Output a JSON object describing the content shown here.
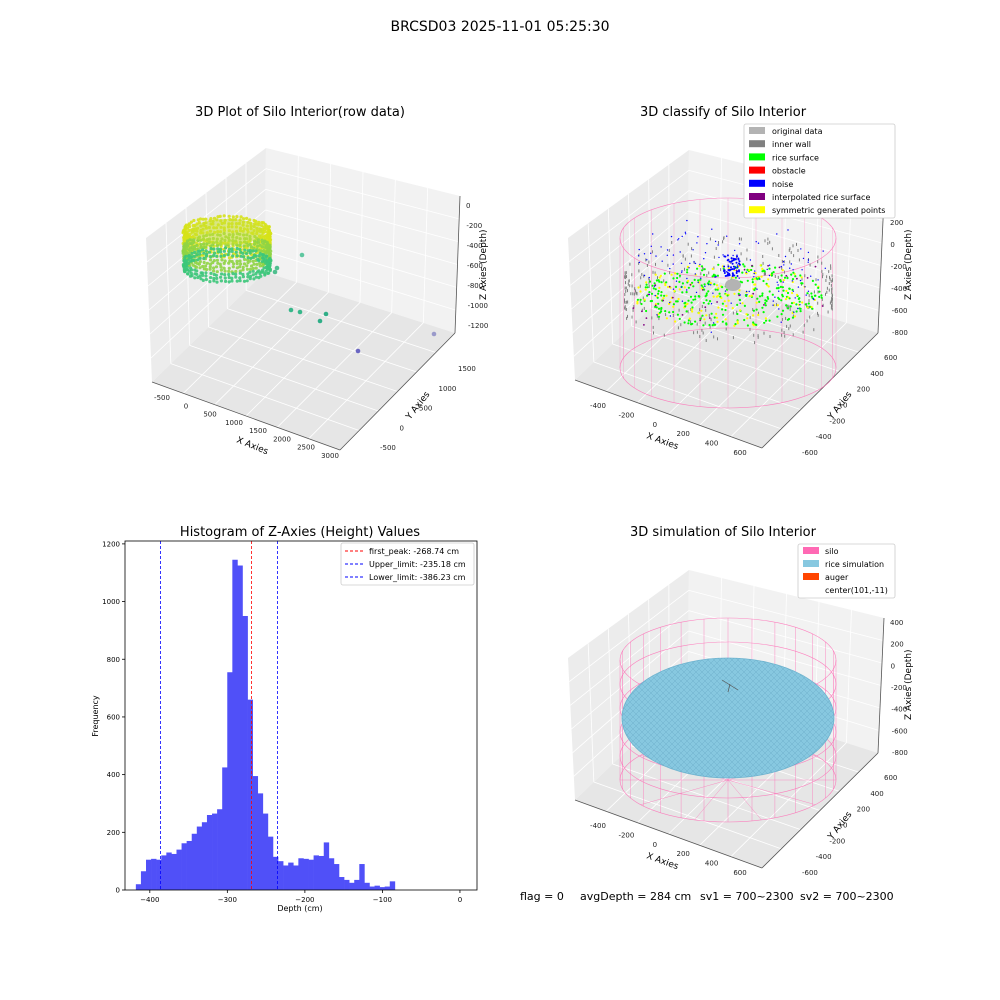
{
  "figure": {
    "title": "BRCSD03 2025-11-01 05:25:30",
    "footer": {
      "flag": "flag = 0",
      "avg_depth": "avgDepth = 284 cm",
      "sv1": "sv1 = 700~2300",
      "sv2": "sv2 = 700~2300"
    }
  },
  "colors": {
    "hist_bar": "#5050f8",
    "peak_line": "#ff0000",
    "limit_line": "#0000ff",
    "silo": "#ff69b4",
    "rice_sim": "#87c8e0",
    "auger": "#ff4500",
    "original": "#b3b3b3",
    "inner_wall": "#808080",
    "rice_surface": "#00ff00",
    "obstacle": "#ff0000",
    "noise": "#0000ff",
    "interpolated": "#800080",
    "symmetric": "#ffff00"
  },
  "chart_data": [
    {
      "type": "scatter",
      "title": "3D Plot of Silo Interior(row data)",
      "xlabel": "X Axies",
      "ylabel": "Y Axies",
      "zlabel": "Z Axies (Depth)",
      "x_ticks": [
        "-500",
        "0",
        "500",
        "1000",
        "1500",
        "2000",
        "2500",
        "3000"
      ],
      "y_ticks": [
        "-500",
        "0",
        "500",
        "1000",
        "1500"
      ],
      "z_ticks": [
        "0",
        "-200",
        "-400",
        "-600",
        "-800",
        "-1000",
        "-1200"
      ],
      "outlier_points": [
        {
          "x": 1150,
          "y": 1350,
          "z": -530
        },
        {
          "x": 1400,
          "y": 700,
          "z": -620
        },
        {
          "x": 1550,
          "y": 650,
          "z": -640
        },
        {
          "x": 1700,
          "y": 450,
          "z": -1040
        },
        {
          "x": 1900,
          "y": 400,
          "z": -1070
        },
        {
          "x": 2300,
          "y": 500,
          "z": -1000
        },
        {
          "x": 2550,
          "y": 150,
          "z": -1150
        },
        {
          "x": 3000,
          "y": 600,
          "z": -1250
        }
      ]
    },
    {
      "type": "scatter",
      "title": "3D classify of Silo Interior",
      "xlabel": "X Axies",
      "ylabel": "Y Axies",
      "zlabel": "Z Axies (Depth)",
      "x_ticks": [
        "-400",
        "-200",
        "0",
        "200",
        "400",
        "600"
      ],
      "y_ticks": [
        "-600",
        "-400",
        "-200",
        "0",
        "200",
        "400",
        "600"
      ],
      "z_ticks": [
        "200",
        "0",
        "-200",
        "-400",
        "-600",
        "-800"
      ],
      "legend": [
        {
          "label": "original data",
          "color": "#b3b3b3"
        },
        {
          "label": "inner wall",
          "color": "#808080"
        },
        {
          "label": "rice surface",
          "color": "#00ff00"
        },
        {
          "label": "obstacle",
          "color": "#ff0000"
        },
        {
          "label": "noise",
          "color": "#0000ff"
        },
        {
          "label": "interpolated rice surface",
          "color": "#800080"
        },
        {
          "label": "symmetric generated points",
          "color": "#ffff00"
        }
      ]
    },
    {
      "type": "bar",
      "title": "Histogram of Z-Axies (Height) Values",
      "xlabel": "Depth (cm)",
      "ylabel": "Frequency",
      "xlim": [
        -432,
        22
      ],
      "ylim": [
        0,
        1210
      ],
      "x_ticks": [
        -400,
        -300,
        -200,
        -100,
        0
      ],
      "y_ticks": [
        0,
        200,
        400,
        600,
        800,
        1000,
        1200
      ],
      "bin_start": -418,
      "bin_width": 6.55,
      "values": [
        20,
        65,
        105,
        108,
        105,
        120,
        130,
        125,
        140,
        162,
        170,
        195,
        220,
        235,
        260,
        265,
        280,
        425,
        755,
        1145,
        1125,
        950,
        660,
        395,
        335,
        265,
        185,
        115,
        100,
        85,
        95,
        85,
        110,
        108,
        105,
        120,
        118,
        165,
        110,
        90,
        45,
        35,
        25,
        35,
        90,
        25,
        12,
        15,
        10,
        12,
        30
      ],
      "vlines": [
        {
          "label": "first_peak: -268.74 cm",
          "x": -268.74,
          "color": "#ff0000"
        },
        {
          "label": "Upper_limit: -235.18 cm",
          "x": -235.18,
          "color": "#0000ff"
        },
        {
          "label": "Lower_limit: -386.23 cm",
          "x": -386.23,
          "color": "#0000ff"
        }
      ]
    },
    {
      "type": "area",
      "title": "3D simulation of Silo Interior",
      "xlabel": "X Axies",
      "ylabel": "Y Axies",
      "zlabel": "Z Axies (Depth)",
      "x_ticks": [
        "-400",
        "-200",
        "0",
        "200",
        "400",
        "600"
      ],
      "y_ticks": [
        "-600",
        "-400",
        "-200",
        "0",
        "200",
        "400",
        "600"
      ],
      "z_ticks": [
        "400",
        "200",
        "0",
        "-200",
        "-400",
        "-600",
        "-800"
      ],
      "legend": [
        {
          "label": "silo",
          "color": "#ff69b4"
        },
        {
          "label": "rice simulation",
          "color": "#87c8e0"
        },
        {
          "label": "auger",
          "color": "#ff4500"
        },
        {
          "label": "center(101,-11)",
          "color": ""
        }
      ]
    }
  ]
}
